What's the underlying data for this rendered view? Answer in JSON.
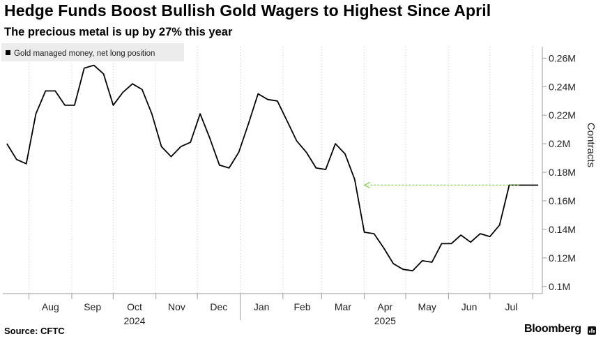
{
  "header": {
    "title": "Hedge Funds Boost Bullish Gold Wagers to Highest Since April",
    "subtitle": "The precious metal is up by 27% this year"
  },
  "footer": {
    "source": "Source: CFTC",
    "brand": "Bloomberg"
  },
  "chart_data": {
    "type": "line",
    "title": "Hedge Funds Boost Bullish Gold Wagers to Highest Since April",
    "subtitle": "The precious metal is up by 27% this year",
    "ylabel": "Contracts",
    "legend": [
      "Gold managed money, net long position"
    ],
    "legend_position": "top-left",
    "x_tick_labels": [
      "Aug",
      "Sep",
      "Oct",
      "Nov",
      "Dec",
      "Jan",
      "Feb",
      "Mar",
      "Apr",
      "May",
      "Jun",
      "Jul"
    ],
    "x_year_labels": [
      {
        "label": "2024",
        "under": "Oct"
      },
      {
        "label": "2025",
        "under": "Apr"
      }
    ],
    "y_ticks": [
      0.1,
      0.12,
      0.14,
      0.16,
      0.18,
      0.2,
      0.22,
      0.24,
      0.26
    ],
    "y_tick_labels": [
      "0.1M",
      "0.12M",
      "0.14M",
      "0.16M",
      "0.18M",
      "0.2M",
      "0.22M",
      "0.24M",
      "0.26M"
    ],
    "ylim": [
      0.095,
      0.268
    ],
    "y_axis_side": "right",
    "grid": "vertical dotted",
    "line_color": "#000000",
    "series": [
      {
        "name": "Gold managed money, net long position",
        "x": [
          "2024-07-16",
          "2024-07-23",
          "2024-07-30",
          "2024-08-06",
          "2024-08-13",
          "2024-08-20",
          "2024-08-27",
          "2024-09-03",
          "2024-09-10",
          "2024-09-17",
          "2024-09-24",
          "2024-10-01",
          "2024-10-08",
          "2024-10-15",
          "2024-10-22",
          "2024-10-29",
          "2024-11-05",
          "2024-11-12",
          "2024-11-19",
          "2024-11-26",
          "2024-12-03",
          "2024-12-10",
          "2024-12-17",
          "2024-12-24",
          "2024-12-31",
          "2025-01-07",
          "2025-01-14",
          "2025-01-21",
          "2025-01-28",
          "2025-02-04",
          "2025-02-11",
          "2025-02-18",
          "2025-02-25",
          "2025-03-04",
          "2025-03-11",
          "2025-03-18",
          "2025-03-25",
          "2025-04-01",
          "2025-04-08",
          "2025-04-15",
          "2025-04-22",
          "2025-04-29",
          "2025-05-06",
          "2025-05-13",
          "2025-05-20",
          "2025-05-27",
          "2025-06-03",
          "2025-06-10",
          "2025-06-17",
          "2025-06-24",
          "2025-07-01",
          "2025-07-08",
          "2025-07-15",
          "2025-07-22",
          "2025-07-29",
          "2025-08-05"
        ],
        "values": [
          0.2,
          0.189,
          0.186,
          0.221,
          0.237,
          0.237,
          0.227,
          0.227,
          0.253,
          0.255,
          0.249,
          0.227,
          0.236,
          0.242,
          0.238,
          0.221,
          0.198,
          0.191,
          0.198,
          0.201,
          0.221,
          0.204,
          0.185,
          0.183,
          0.194,
          0.214,
          0.235,
          0.231,
          0.23,
          0.216,
          0.202,
          0.194,
          0.183,
          0.182,
          0.2,
          0.193,
          0.175,
          0.138,
          0.137,
          0.127,
          0.116,
          0.112,
          0.111,
          0.118,
          0.117,
          0.13,
          0.13,
          0.136,
          0.131,
          0.137,
          0.135,
          0.143,
          0.171,
          0.171,
          0.171,
          0.171
        ]
      }
    ],
    "annotations": [
      {
        "type": "arrow",
        "from_date": "2025-07-22",
        "to_date": "2025-04-01",
        "value": 0.171,
        "color": "#8fd14f",
        "style": "dashed"
      }
    ]
  }
}
